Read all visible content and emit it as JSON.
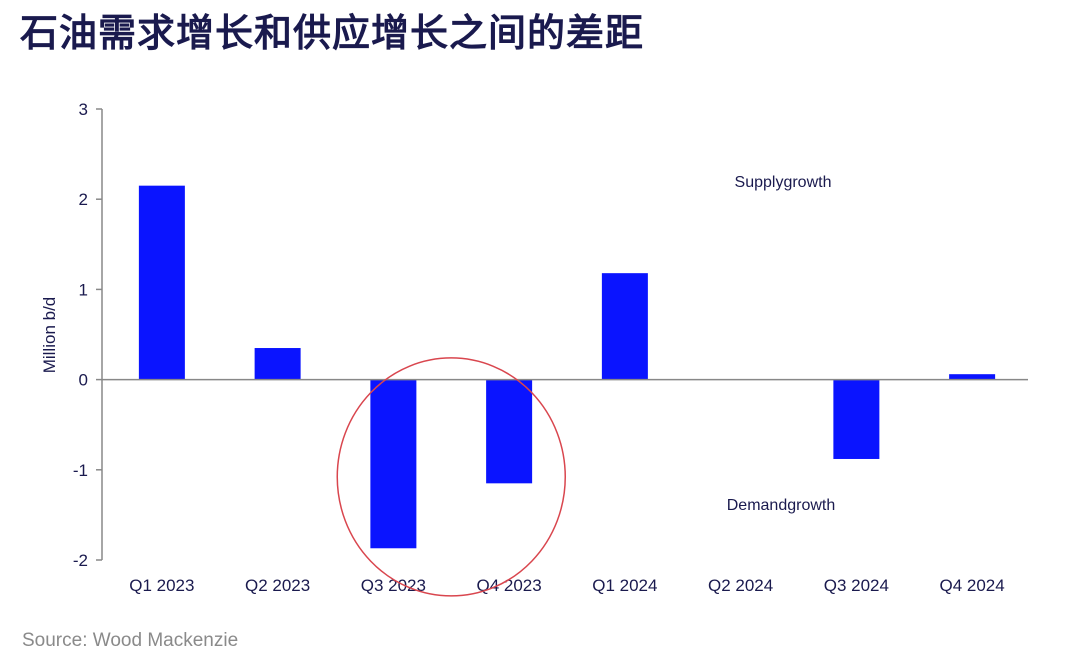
{
  "title": "石油需求增长和供应增长之间的差距",
  "source": "Source: Wood Mackenzie",
  "colors": {
    "bar": "#0a14ff",
    "axis": "#888888",
    "circle": "#d9464e",
    "text": "#1a1a4e"
  },
  "chart_data": {
    "type": "bar",
    "categories": [
      "Q1 2023",
      "Q2 2023",
      "Q3 2023",
      "Q4 2023",
      "Q1 2024",
      "Q2 2024",
      "Q3 2024",
      "Q4 2024"
    ],
    "values": [
      2.15,
      0.35,
      -1.87,
      -1.15,
      1.18,
      0.0,
      -0.88,
      0.06
    ],
    "ylabel": "Million b/d",
    "ylim": [
      -2,
      3
    ],
    "yticks": [
      3,
      2,
      1,
      0,
      -1,
      -2
    ],
    "annotations": {
      "supply": "Supplygrowth",
      "demand": "Demandgrowth",
      "highlighted_categories": [
        "Q3 2023",
        "Q4 2023"
      ]
    },
    "grid": false,
    "legend": "none"
  }
}
